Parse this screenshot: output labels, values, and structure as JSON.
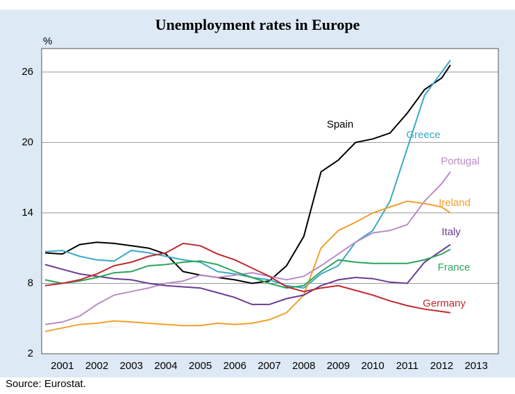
{
  "chart_data": {
    "type": "line",
    "title": "Unemployment rates in Europe",
    "y_label": "%",
    "source": "Source: Eurostat.",
    "x": [
      2001,
      2001.5,
      2002,
      2002.5,
      2003,
      2003.5,
      2004,
      2004.5,
      2005,
      2005.5,
      2006,
      2006.5,
      2007,
      2007.5,
      2008,
      2008.5,
      2009,
      2009.5,
      2010,
      2010.5,
      2011,
      2011.5,
      2012,
      2012.5,
      2012.75
    ],
    "xlim": [
      2001,
      2014
    ],
    "xticks": [
      {
        "value": 2001.5,
        "label": "2001"
      },
      {
        "value": 2002.5,
        "label": "2002"
      },
      {
        "value": 2003.5,
        "label": "2003"
      },
      {
        "value": 2004.5,
        "label": "2004"
      },
      {
        "value": 2005.5,
        "label": "2005"
      },
      {
        "value": 2006.5,
        "label": "2006"
      },
      {
        "value": 2007.5,
        "label": "2007"
      },
      {
        "value": 2008.5,
        "label": "2008"
      },
      {
        "value": 2009.5,
        "label": "2009"
      },
      {
        "value": 2010.5,
        "label": "2010"
      },
      {
        "value": 2011.5,
        "label": "2011"
      },
      {
        "value": 2012.5,
        "label": "2012"
      },
      {
        "value": 2013.5,
        "label": "2013"
      }
    ],
    "ylim": [
      2,
      28
    ],
    "yticks": [
      2,
      8,
      14,
      20,
      26
    ],
    "grid": true,
    "series": [
      {
        "name": "Spain",
        "color": "#000000",
        "values": [
          10.6,
          10.5,
          11.3,
          11.5,
          11.4,
          11.2,
          11.0,
          10.5,
          9.0,
          8.7,
          8.5,
          8.3,
          8.0,
          8.2,
          9.5,
          12.0,
          17.5,
          18.5,
          20.0,
          20.3,
          20.8,
          22.5,
          24.5,
          25.5,
          26.6
        ]
      },
      {
        "name": "Greece",
        "color": "#3aa9c9",
        "values": [
          10.7,
          10.8,
          10.3,
          10.0,
          9.9,
          10.8,
          10.6,
          10.3,
          10.0,
          9.8,
          9.0,
          8.8,
          8.5,
          8.3,
          7.8,
          7.6,
          8.8,
          9.5,
          11.5,
          12.5,
          15.0,
          19.5,
          24.0,
          26.0,
          27.0
        ]
      },
      {
        "name": "Portugal",
        "color": "#b98cc6",
        "values": [
          4.5,
          4.7,
          5.2,
          6.2,
          7.0,
          7.3,
          7.6,
          8.0,
          8.2,
          8.7,
          8.5,
          8.7,
          8.9,
          8.6,
          8.3,
          8.6,
          9.5,
          10.5,
          11.5,
          12.3,
          12.5,
          13.0,
          15.0,
          16.5,
          17.5
        ]
      },
      {
        "name": "Ireland",
        "color": "#f0a02c",
        "values": [
          3.9,
          4.2,
          4.5,
          4.6,
          4.8,
          4.7,
          4.6,
          4.5,
          4.4,
          4.4,
          4.6,
          4.5,
          4.6,
          4.9,
          5.5,
          7.0,
          11.0,
          12.5,
          13.2,
          14.0,
          14.5,
          15.0,
          14.8,
          14.5,
          14.0
        ]
      },
      {
        "name": "Italy",
        "color": "#6a3a94",
        "values": [
          9.6,
          9.2,
          8.8,
          8.6,
          8.4,
          8.3,
          8.0,
          7.8,
          7.7,
          7.6,
          7.2,
          6.8,
          6.2,
          6.2,
          6.7,
          7.0,
          7.8,
          8.3,
          8.5,
          8.4,
          8.1,
          8.0,
          9.8,
          10.8,
          11.3
        ]
      },
      {
        "name": "France",
        "color": "#2aa55a",
        "values": [
          8.3,
          8.0,
          8.2,
          8.5,
          8.9,
          9.0,
          9.5,
          9.6,
          9.8,
          9.9,
          9.6,
          9.0,
          8.5,
          8.0,
          7.6,
          7.8,
          9.0,
          10.0,
          9.8,
          9.7,
          9.7,
          9.7,
          10.0,
          10.5,
          10.9
        ]
      },
      {
        "name": "Germany",
        "color": "#c0282d",
        "values": [
          7.8,
          8.0,
          8.3,
          8.8,
          9.5,
          9.8,
          10.3,
          10.6,
          11.4,
          11.2,
          10.5,
          10.0,
          9.3,
          8.6,
          7.7,
          7.3,
          7.6,
          7.8,
          7.4,
          7.0,
          6.5,
          6.1,
          5.8,
          5.6,
          5.5
        ]
      }
    ]
  }
}
